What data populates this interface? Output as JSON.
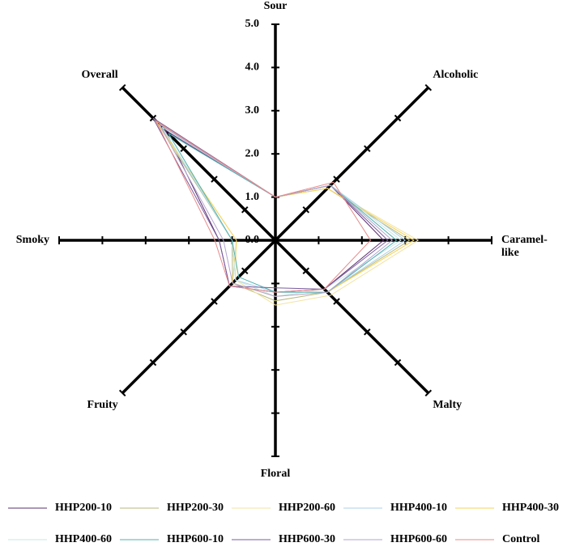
{
  "chart_data": {
    "type": "radar",
    "categories": [
      "Sour",
      "Alcoholic",
      "Caramel-like",
      "Malty",
      "Floral",
      "Fruity",
      "Smoky",
      "Overall"
    ],
    "ylim": [
      0,
      5
    ],
    "yticks": [
      {
        "value": 0,
        "label": "0.0"
      },
      {
        "value": 1,
        "label": "1.0"
      },
      {
        "value": 2,
        "label": "2.0"
      },
      {
        "value": 3,
        "label": "3.0"
      },
      {
        "value": 4,
        "label": "4.0"
      },
      {
        "value": 5,
        "label": "5.0"
      }
    ],
    "series": [
      {
        "name": "HHP200-10",
        "color": "#5b2c6f",
        "values": [
          1.0,
          1.8,
          2.5,
          1.6,
          1.2,
          1.5,
          1.3,
          3.6
        ]
      },
      {
        "name": "HHP200-30",
        "color": "#b5b87a",
        "values": [
          1.0,
          1.7,
          3.1,
          1.7,
          1.4,
          1.4,
          1.0,
          3.9
        ]
      },
      {
        "name": "HHP200-60",
        "color": "#f2e3a0",
        "values": [
          1.0,
          1.7,
          3.3,
          1.8,
          1.5,
          1.3,
          0.9,
          4.0
        ]
      },
      {
        "name": "HHP400-10",
        "color": "#a9cfe8",
        "values": [
          1.0,
          1.8,
          3.0,
          1.7,
          1.2,
          1.3,
          1.0,
          3.8
        ]
      },
      {
        "name": "HHP400-30",
        "color": "#f7d358",
        "values": [
          1.0,
          1.7,
          3.2,
          1.7,
          1.3,
          1.4,
          0.9,
          3.9
        ]
      },
      {
        "name": "HHP400-60",
        "color": "#c8e6e6",
        "values": [
          1.0,
          1.8,
          2.9,
          1.6,
          1.3,
          1.3,
          1.0,
          3.7
        ]
      },
      {
        "name": "HHP600-10",
        "color": "#4fb0b0",
        "values": [
          1.0,
          1.8,
          2.8,
          1.7,
          1.2,
          1.2,
          1.0,
          3.5
        ]
      },
      {
        "name": "HHP600-30",
        "color": "#7a5c9e",
        "values": [
          1.0,
          1.8,
          2.6,
          1.6,
          1.1,
          1.5,
          1.3,
          4.0
        ]
      },
      {
        "name": "HHP600-60",
        "color": "#b3a5cf",
        "values": [
          1.0,
          1.8,
          2.7,
          1.7,
          1.3,
          1.4,
          1.2,
          3.8
        ]
      },
      {
        "name": "Control",
        "color": "#e88a8a",
        "values": [
          1.0,
          1.9,
          2.2,
          1.6,
          1.2,
          1.5,
          1.4,
          3.9
        ]
      }
    ]
  }
}
